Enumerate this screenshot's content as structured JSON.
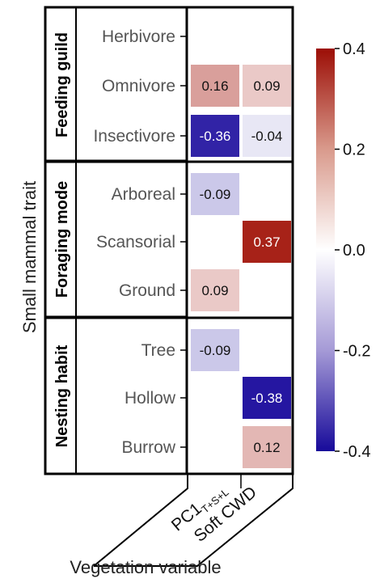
{
  "chart_data": {
    "type": "heatmap",
    "title": "",
    "ylabel": "Small mammal trait",
    "xlabel": "Vegetation variable",
    "x_categories": [
      {
        "main": "PC1",
        "subscript": "T+S+L"
      },
      {
        "main": "Soft CWD",
        "subscript": ""
      }
    ],
    "groups": [
      {
        "name": "Feeding guild",
        "traits": [
          "Herbivore",
          "Omnivore",
          "Insectivore"
        ]
      },
      {
        "name": "Foraging mode",
        "traits": [
          "Arboreal",
          "Scansorial",
          "Ground"
        ]
      },
      {
        "name": "Nesting habit",
        "traits": [
          "Tree",
          "Hollow",
          "Burrow"
        ]
      }
    ],
    "cells": [
      {
        "trait": "Omnivore",
        "variable": 0,
        "value": 0.16,
        "label": "0.16"
      },
      {
        "trait": "Omnivore",
        "variable": 1,
        "value": 0.09,
        "label": "0.09"
      },
      {
        "trait": "Insectivore",
        "variable": 0,
        "value": -0.36,
        "label": "-0.36"
      },
      {
        "trait": "Insectivore",
        "variable": 1,
        "value": -0.04,
        "label": "-0.04"
      },
      {
        "trait": "Arboreal",
        "variable": 0,
        "value": -0.09,
        "label": "-0.09"
      },
      {
        "trait": "Scansorial",
        "variable": 1,
        "value": 0.37,
        "label": "0.37"
      },
      {
        "trait": "Ground",
        "variable": 0,
        "value": 0.09,
        "label": "0.09"
      },
      {
        "trait": "Tree",
        "variable": 0,
        "value": -0.09,
        "label": "-0.09"
      },
      {
        "trait": "Hollow",
        "variable": 1,
        "value": -0.38,
        "label": "-0.38"
      },
      {
        "trait": "Burrow",
        "variable": 1,
        "value": 0.12,
        "label": "0.12"
      }
    ],
    "colorbar": {
      "min": -0.4,
      "max": 0.4,
      "ticks": [
        0.4,
        0.2,
        0.0,
        -0.2,
        -0.4
      ],
      "tick_labels": [
        "0.4",
        "0.2",
        "0.0",
        "-0.2",
        "-0.4"
      ],
      "colors": {
        "low": "#1a0a9c",
        "mid": "#ffffff",
        "high": "#a01005"
      },
      "placement": "right"
    }
  }
}
